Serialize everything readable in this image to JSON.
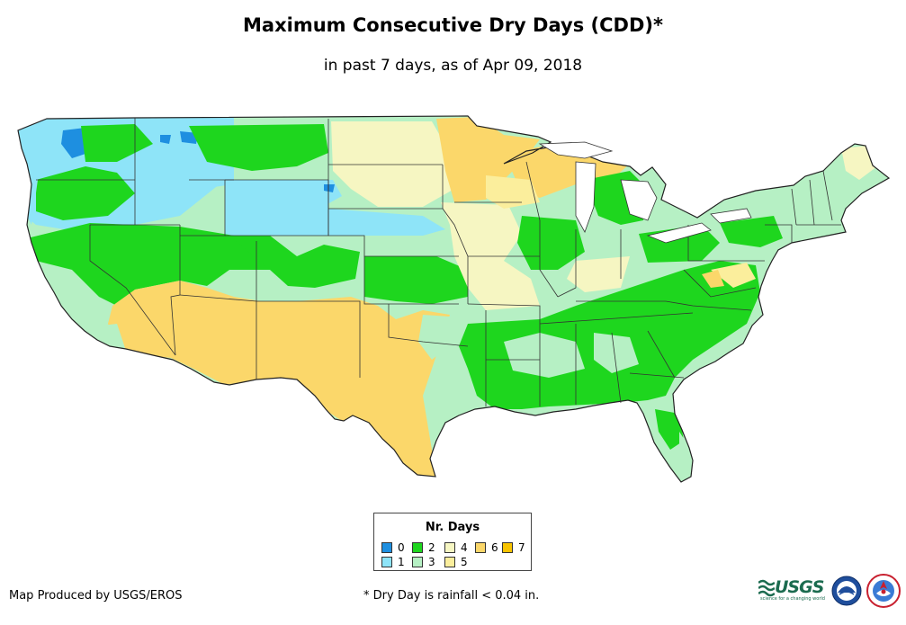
{
  "title": "Maximum Consecutive Dry Days (CDD)*",
  "subtitle": "in past 7 days, as of Apr 09, 2018",
  "legend": {
    "title": "Nr. Days",
    "items": [
      {
        "label": "0",
        "color": "#1e8fe0"
      },
      {
        "label": "1",
        "color": "#8ee4f8"
      },
      {
        "label": "2",
        "color": "#1ed61e"
      },
      {
        "label": "3",
        "color": "#b6f0c4"
      },
      {
        "label": "4",
        "color": "#f6f6c2"
      },
      {
        "label": "5",
        "color": "#fbee9c"
      },
      {
        "label": "6",
        "color": "#fbd76a"
      },
      {
        "label": "7",
        "color": "#f8c400"
      }
    ]
  },
  "footer": {
    "credit": "Map Produced by USGS/EROS",
    "note": "* Dry Day is rainfall < 0.04 in."
  },
  "logos": {
    "usgs_name": "USGS",
    "usgs_tagline": "science for a changing world"
  }
}
